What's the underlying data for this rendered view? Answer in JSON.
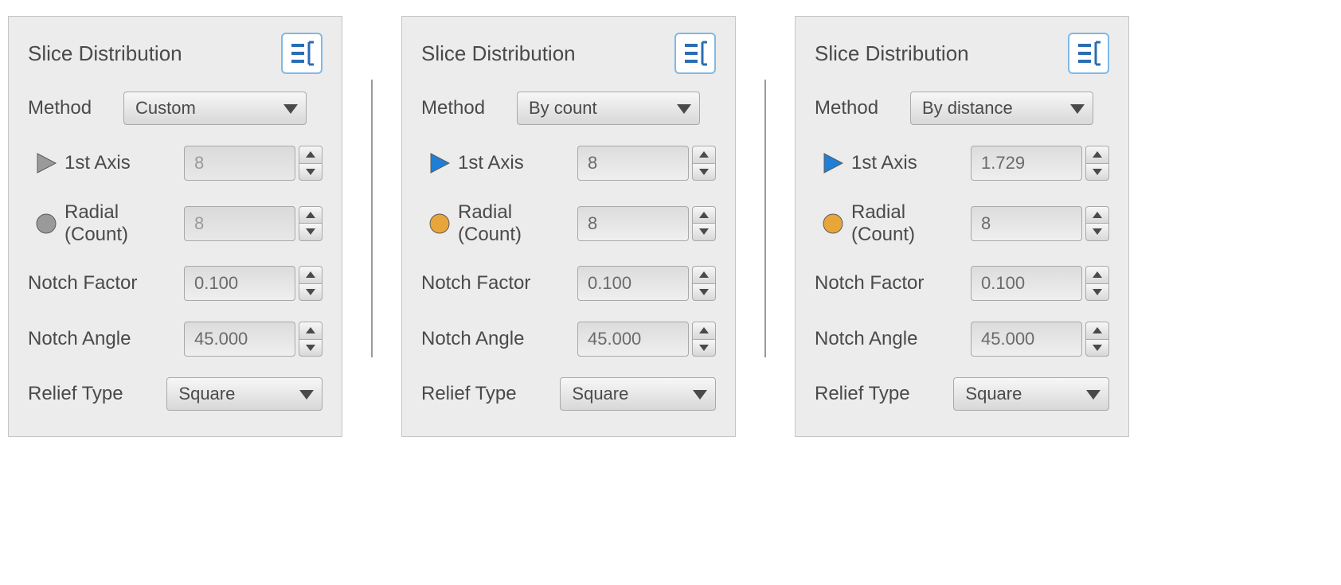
{
  "colors": {
    "panel_bg": "#ececec",
    "panel_border": "#c5c5c5",
    "text": "#4a4a4a",
    "disabled_text": "#9a9a9a",
    "dropdown_border": "#a9a9a9",
    "collapse_border": "#7fb9e6",
    "collapse_bar": "#2a6db3",
    "active_blue": "#1f7fd6",
    "active_orange": "#e8a53a",
    "inactive_grey": "#9a9a9a",
    "arrow": "#4a4a4a"
  },
  "shared": {
    "title": "Slice Distribution",
    "method_label": "Method",
    "axis1_label": "1st Axis",
    "radial_label_line1": "Radial",
    "radial_label_line2": "(Count)",
    "notch_factor_label": "Notch Factor",
    "notch_angle_label": "Notch Angle",
    "relief_label": "Relief Type"
  },
  "panels": [
    {
      "method_value": "Custom",
      "axis1_value": "8",
      "axis1_disabled": true,
      "radial_value": "8",
      "radial_disabled": true,
      "notch_factor_value": "0.100",
      "notch_angle_value": "45.000",
      "relief_value": "Square",
      "axis_icon_color": "#9a9a9a",
      "radial_icon_color": "#9a9a9a",
      "method_width": 230,
      "relief_width": 200
    },
    {
      "method_value": "By count",
      "axis1_value": "8",
      "axis1_disabled": false,
      "radial_value": "8",
      "radial_disabled": false,
      "notch_factor_value": "0.100",
      "notch_angle_value": "45.000",
      "relief_value": "Square",
      "axis_icon_color": "#1f7fd6",
      "radial_icon_color": "#e8a53a",
      "method_width": 230,
      "relief_width": 200
    },
    {
      "method_value": "By distance",
      "axis1_value": "1.729",
      "axis1_disabled": false,
      "radial_value": "8",
      "radial_disabled": false,
      "notch_factor_value": "0.100",
      "notch_angle_value": "45.000",
      "relief_value": "Square",
      "axis_icon_color": "#1f7fd6",
      "radial_icon_color": "#e8a53a",
      "method_width": 230,
      "relief_width": 200
    }
  ]
}
